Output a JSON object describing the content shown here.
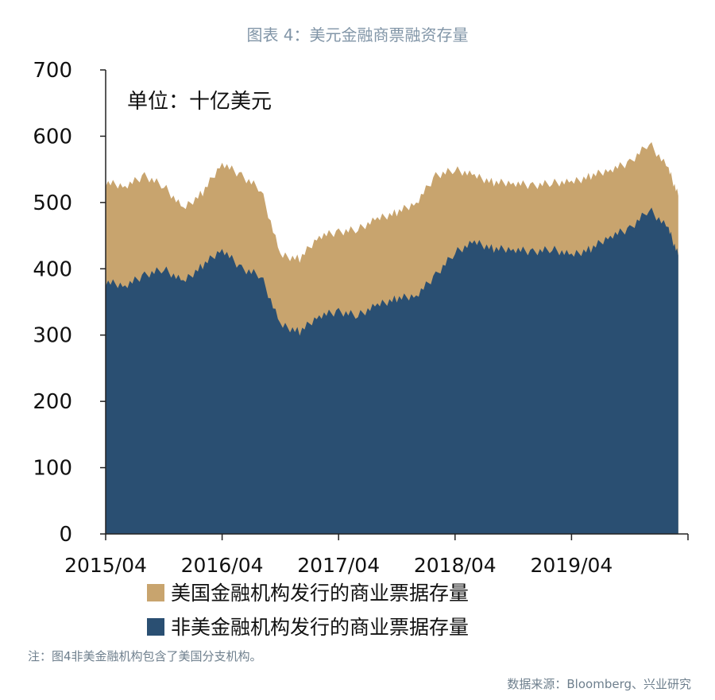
{
  "header": {
    "title": "图表 4：美元金融商票融资存量"
  },
  "footer": {
    "note": "注：图4非美金融机构包含了美国分支机构。",
    "source": "数据来源：Bloomberg、兴业研究"
  },
  "colors": {
    "us_financial": "#c8a46e",
    "non_us_financial": "#2a4f72",
    "axis": "#222222"
  },
  "chart_data": {
    "type": "area",
    "stacked": true,
    "unit_label": "单位：十亿美元",
    "ylim": [
      0,
      700
    ],
    "yticks": [
      "0",
      "100",
      "200",
      "300",
      "400",
      "500",
      "600",
      "700"
    ],
    "xlim": [
      "2015-04",
      "2020-04"
    ],
    "xticks": [
      "2015/04",
      "2016/04",
      "2017/04",
      "2018/04",
      "2019/04"
    ],
    "legend_position": "bottom",
    "series": [
      {
        "name": "非美金融机构发行的商业票据存量",
        "key": "non_us",
        "color": "#2a4f72",
        "x": [
          "2015-04",
          "2015-06",
          "2015-08",
          "2015-10",
          "2015-12",
          "2016-02",
          "2016-04",
          "2016-06",
          "2016-08",
          "2016-10",
          "2016-12",
          "2017-02",
          "2017-04",
          "2017-06",
          "2017-08",
          "2017-10",
          "2017-12",
          "2018-02",
          "2018-04",
          "2018-06",
          "2018-08",
          "2018-10",
          "2018-12",
          "2019-02",
          "2019-04",
          "2019-06",
          "2019-08",
          "2019-10",
          "2019-12",
          "2020-02",
          "2020-03"
        ],
        "values": [
          380,
          375,
          390,
          400,
          380,
          405,
          430,
          400,
          390,
          315,
          305,
          330,
          335,
          330,
          345,
          355,
          360,
          390,
          425,
          440,
          430,
          430,
          425,
          430,
          420,
          430,
          450,
          460,
          490,
          460,
          420
        ]
      },
      {
        "name": "美国金融机构发行的商业票据存量",
        "key": "us",
        "color": "#c8a46e",
        "x": [
          "2015-04",
          "2015-06",
          "2015-08",
          "2015-10",
          "2015-12",
          "2016-02",
          "2016-04",
          "2016-06",
          "2016-08",
          "2016-10",
          "2016-12",
          "2017-02",
          "2017-04",
          "2017-06",
          "2017-08",
          "2017-10",
          "2017-12",
          "2018-02",
          "2018-04",
          "2018-06",
          "2018-08",
          "2018-10",
          "2018-12",
          "2019-02",
          "2019-04",
          "2019-06",
          "2019-08",
          "2019-10",
          "2019-12",
          "2020-02",
          "2020-03"
        ],
        "values": [
          150,
          150,
          150,
          125,
          110,
          110,
          130,
          140,
          130,
          105,
          110,
          120,
          120,
          130,
          130,
          130,
          140,
          150,
          125,
          100,
          100,
          100,
          100,
          100,
          110,
          110,
          100,
          100,
          100,
          90,
          90
        ]
      }
    ]
  }
}
